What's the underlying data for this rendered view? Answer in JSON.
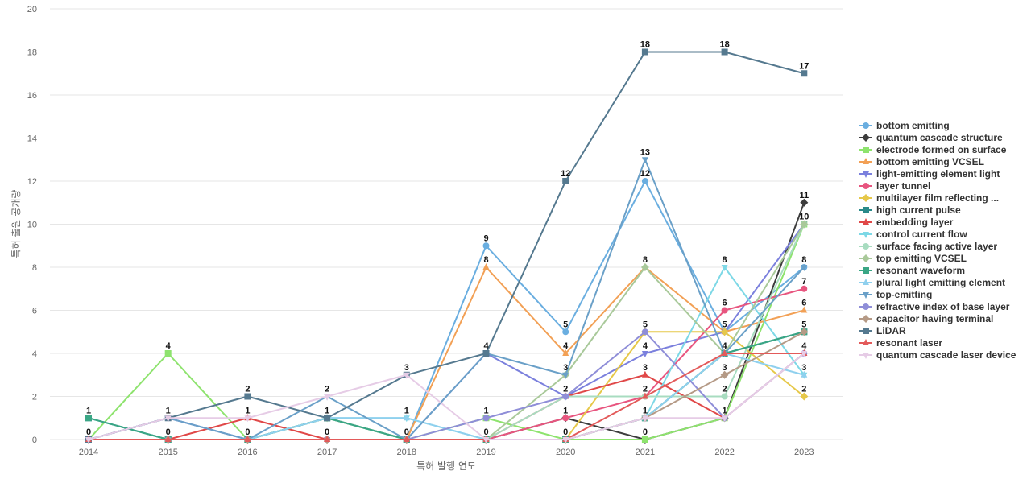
{
  "chart_data": {
    "type": "line",
    "xlabel": "특허 발행 연도",
    "ylabel": "특허 출원 공개량",
    "ylim": [
      0,
      20
    ],
    "yticks": [
      0,
      2,
      4,
      6,
      8,
      10,
      12,
      14,
      16,
      18,
      20
    ],
    "categories": [
      "2014",
      "2015",
      "2016",
      "2017",
      "2018",
      "2019",
      "2020",
      "2021",
      "2022",
      "2023"
    ],
    "grid": true,
    "legend_position": "right",
    "series": [
      {
        "name": "bottom emitting",
        "color": "#6aaee0",
        "marker": "circle",
        "values": [
          0,
          0,
          0,
          1,
          0,
          9,
          5,
          12,
          5,
          8
        ]
      },
      {
        "name": "quantum cascade structure",
        "color": "#3d3d3d",
        "marker": "diamond",
        "values": [
          0,
          0,
          0,
          0,
          0,
          0,
          1,
          0,
          1,
          11
        ]
      },
      {
        "name": "electrode formed on surface",
        "color": "#8ee36e",
        "marker": "square",
        "values": [
          0,
          4,
          0,
          1,
          0,
          1,
          0,
          0,
          1,
          10
        ]
      },
      {
        "name": "bottom emitting VCSEL",
        "color": "#f2a055",
        "marker": "triangle",
        "values": [
          0,
          0,
          0,
          0,
          0,
          8,
          4,
          8,
          5,
          6
        ]
      },
      {
        "name": "light-emitting element light",
        "color": "#7b80dd",
        "marker": "triangle-down",
        "values": [
          0,
          1,
          0,
          0,
          0,
          4,
          2,
          4,
          5,
          10
        ]
      },
      {
        "name": "layer tunnel",
        "color": "#e8557f",
        "marker": "circle",
        "values": [
          0,
          0,
          0,
          0,
          0,
          0,
          1,
          2,
          6,
          7
        ]
      },
      {
        "name": "multilayer film reflecting ...",
        "color": "#e6c84a",
        "marker": "diamond",
        "values": [
          0,
          0,
          0,
          0,
          0,
          0,
          0,
          5,
          5,
          2
        ]
      },
      {
        "name": "high current pulse",
        "color": "#2a8a8a",
        "marker": "square",
        "values": [
          1,
          0,
          0,
          1,
          0,
          0,
          0,
          1,
          4,
          5
        ]
      },
      {
        "name": "embedding layer",
        "color": "#e04848",
        "marker": "triangle",
        "values": [
          0,
          0,
          1,
          0,
          0,
          0,
          2,
          3,
          1,
          4
        ]
      },
      {
        "name": "control current flow",
        "color": "#7dd8e6",
        "marker": "triangle-down",
        "values": [
          0,
          0,
          0,
          1,
          1,
          0,
          0,
          1,
          8,
          3
        ]
      },
      {
        "name": "surface facing active layer",
        "color": "#a8dcc0",
        "marker": "circle",
        "values": [
          0,
          0,
          0,
          1,
          0,
          0,
          2,
          2,
          2,
          10
        ]
      },
      {
        "name": "top emitting VCSEL",
        "color": "#a9c99a",
        "marker": "diamond",
        "values": [
          0,
          0,
          0,
          1,
          0,
          0,
          3,
          8,
          4,
          10
        ]
      },
      {
        "name": "resonant waveform",
        "color": "#3aa685",
        "marker": "square",
        "values": [
          1,
          0,
          0,
          1,
          0,
          0,
          0,
          1,
          4,
          5
        ]
      },
      {
        "name": "plural light emitting element",
        "color": "#8fd0ee",
        "marker": "triangle",
        "values": [
          0,
          0,
          0,
          1,
          1,
          0,
          0,
          1,
          4,
          3
        ]
      },
      {
        "name": "top-emitting",
        "color": "#6aa0c8",
        "marker": "triangle-down",
        "values": [
          0,
          1,
          0,
          2,
          0,
          4,
          3,
          13,
          4,
          8
        ]
      },
      {
        "name": "refractive index of base layer",
        "color": "#8f8ed8",
        "marker": "circle",
        "values": [
          0,
          0,
          0,
          0,
          0,
          1,
          2,
          5,
          1,
          4
        ]
      },
      {
        "name": "capacitor having terminal",
        "color": "#b59a86",
        "marker": "diamond",
        "values": [
          0,
          0,
          0,
          0,
          0,
          0,
          0,
          1,
          3,
          5
        ]
      },
      {
        "name": "LiDAR",
        "color": "#55798f",
        "marker": "square",
        "values": [
          0,
          1,
          2,
          1,
          3,
          4,
          12,
          18,
          18,
          17
        ]
      },
      {
        "name": "resonant laser",
        "color": "#e35a5a",
        "marker": "triangle",
        "values": [
          0,
          0,
          0,
          0,
          0,
          0,
          0,
          2,
          4,
          4
        ]
      },
      {
        "name": "quantum cascade laser device",
        "color": "#e6cce6",
        "marker": "triangle-down",
        "values": [
          0,
          1,
          1,
          2,
          3,
          0,
          0,
          1,
          1,
          4
        ]
      }
    ],
    "data_labels": [
      {
        "series": 7,
        "x": "2014",
        "value": 1
      },
      {
        "series": 0,
        "x": "2014",
        "value": 0
      },
      {
        "series": 2,
        "x": "2015",
        "value": 4
      },
      {
        "series": 17,
        "x": "2015",
        "value": 1
      },
      {
        "series": 0,
        "x": "2015",
        "value": 0
      },
      {
        "series": 17,
        "x": "2016",
        "value": 2
      },
      {
        "series": 8,
        "x": "2016",
        "value": 1
      },
      {
        "series": 0,
        "x": "2016",
        "value": 0
      },
      {
        "series": 14,
        "x": "2017",
        "value": 2
      },
      {
        "series": 7,
        "x": "2017",
        "value": 1
      },
      {
        "series": 1,
        "x": "2017",
        "value": 0
      },
      {
        "series": 17,
        "x": "2018",
        "value": 3
      },
      {
        "series": 9,
        "x": "2018",
        "value": 1
      },
      {
        "series": 0,
        "x": "2018",
        "value": 0
      },
      {
        "series": 0,
        "x": "2019",
        "value": 9
      },
      {
        "series": 3,
        "x": "2019",
        "value": 8
      },
      {
        "series": 17,
        "x": "2019",
        "value": 4
      },
      {
        "series": 15,
        "x": "2019",
        "value": 1
      },
      {
        "series": 1,
        "x": "2019",
        "value": 0
      },
      {
        "series": 17,
        "x": "2020",
        "value": 12
      },
      {
        "series": 0,
        "x": "2020",
        "value": 5
      },
      {
        "series": 3,
        "x": "2020",
        "value": 4
      },
      {
        "series": 11,
        "x": "2020",
        "value": 3
      },
      {
        "series": 4,
        "x": "2020",
        "value": 2
      },
      {
        "series": 1,
        "x": "2020",
        "value": 1
      },
      {
        "series": 2,
        "x": "2020",
        "value": 0
      },
      {
        "series": 17,
        "x": "2021",
        "value": 18
      },
      {
        "series": 14,
        "x": "2021",
        "value": 13
      },
      {
        "series": 0,
        "x": "2021",
        "value": 12
      },
      {
        "series": 3,
        "x": "2021",
        "value": 8
      },
      {
        "series": 15,
        "x": "2021",
        "value": 5
      },
      {
        "series": 4,
        "x": "2021",
        "value": 4
      },
      {
        "series": 8,
        "x": "2021",
        "value": 3
      },
      {
        "series": 10,
        "x": "2021",
        "value": 2
      },
      {
        "series": 7,
        "x": "2021",
        "value": 1
      },
      {
        "series": 1,
        "x": "2021",
        "value": 0
      },
      {
        "series": 17,
        "x": "2022",
        "value": 18
      },
      {
        "series": 9,
        "x": "2022",
        "value": 8
      },
      {
        "series": 5,
        "x": "2022",
        "value": 6
      },
      {
        "series": 0,
        "x": "2022",
        "value": 5
      },
      {
        "series": 11,
        "x": "2022",
        "value": 4
      },
      {
        "series": 16,
        "x": "2022",
        "value": 3
      },
      {
        "series": 10,
        "x": "2022",
        "value": 2
      },
      {
        "series": 15,
        "x": "2022",
        "value": 1
      },
      {
        "series": 17,
        "x": "2023",
        "value": 17
      },
      {
        "series": 1,
        "x": "2023",
        "value": 11
      },
      {
        "series": 2,
        "x": "2023",
        "value": 10
      },
      {
        "series": 0,
        "x": "2023",
        "value": 8
      },
      {
        "series": 5,
        "x": "2023",
        "value": 7
      },
      {
        "series": 3,
        "x": "2023",
        "value": 6
      },
      {
        "series": 7,
        "x": "2023",
        "value": 5
      },
      {
        "series": 8,
        "x": "2023",
        "value": 4
      },
      {
        "series": 9,
        "x": "2023",
        "value": 3
      },
      {
        "series": 6,
        "x": "2023",
        "value": 2
      }
    ]
  }
}
